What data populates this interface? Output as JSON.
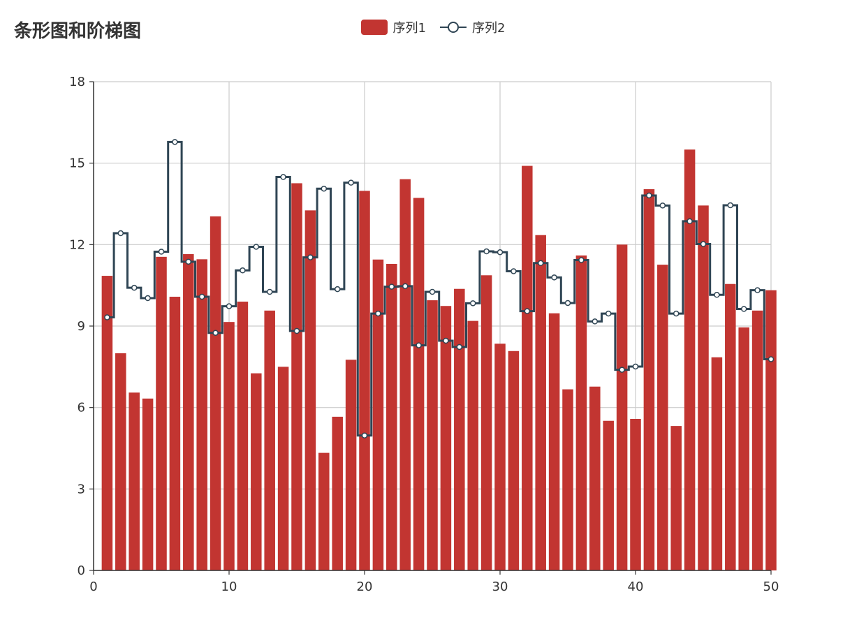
{
  "chart_data": {
    "type": "bar",
    "title": "条形图和阶梯图",
    "xlabel": "",
    "ylabel": "",
    "xlim": [
      0,
      50
    ],
    "ylim": [
      0,
      18
    ],
    "xticks": [
      "0",
      "10",
      "20",
      "30",
      "40",
      "50"
    ],
    "yticks": [
      "0",
      "3",
      "6",
      "9",
      "12",
      "15",
      "18"
    ],
    "grid": true,
    "legend_position": "top-center",
    "x": [
      1,
      2,
      3,
      4,
      5,
      6,
      7,
      8,
      9,
      10,
      11,
      12,
      13,
      14,
      15,
      16,
      17,
      18,
      19,
      20,
      21,
      22,
      23,
      24,
      25,
      26,
      27,
      28,
      29,
      30,
      31,
      32,
      33,
      34,
      35,
      36,
      37,
      38,
      39,
      40,
      41,
      42,
      43,
      44,
      45,
      46,
      47,
      48,
      49,
      50
    ],
    "series": [
      {
        "name": "序列1",
        "type": "bar",
        "color": "#c23531",
        "values": [
          10.85,
          8.0,
          6.55,
          6.33,
          11.55,
          10.08,
          11.65,
          11.46,
          13.04,
          9.15,
          9.9,
          7.26,
          9.57,
          7.5,
          14.26,
          13.26,
          4.33,
          5.66,
          7.76,
          13.98,
          11.45,
          11.29,
          14.41,
          13.72,
          9.95,
          9.74,
          10.37,
          9.19,
          10.87,
          8.35,
          8.08,
          14.9,
          12.35,
          9.47,
          6.67,
          11.6,
          6.77,
          5.51,
          12.0,
          5.58,
          14.04,
          11.26,
          5.32,
          15.5,
          13.44,
          7.85,
          10.55,
          8.95,
          9.57,
          10.32
        ]
      },
      {
        "name": "序列2",
        "type": "line-step",
        "color": "#2f4554",
        "values": [
          9.32,
          12.42,
          10.41,
          10.03,
          11.74,
          15.78,
          11.37,
          10.08,
          8.75,
          9.73,
          11.05,
          11.92,
          10.26,
          14.49,
          8.82,
          11.53,
          14.06,
          10.36,
          14.28,
          4.97,
          9.46,
          10.45,
          10.47,
          8.29,
          10.26,
          8.46,
          8.23,
          9.84,
          11.75,
          11.72,
          11.02,
          9.55,
          11.32,
          10.79,
          9.85,
          11.43,
          9.17,
          9.46,
          7.39,
          7.51,
          13.81,
          13.44,
          9.46,
          12.86,
          12.02,
          10.15,
          13.45,
          9.63,
          10.32,
          7.78
        ]
      }
    ]
  }
}
